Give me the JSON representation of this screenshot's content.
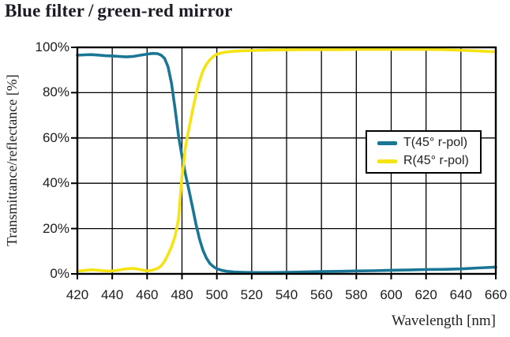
{
  "title": "Blue filter / green-red mirror",
  "colors": {
    "t_curve": "#1a7695",
    "r_curve": "#f5e314",
    "grid": "#000000",
    "frame": "#000000",
    "text": "#222222",
    "title_text": "#1b1b25",
    "background": "#ffffff"
  },
  "legend": {
    "entries": [
      {
        "label": "T(45° r-pol)",
        "swatch": "t-curve-swatch"
      },
      {
        "label": "R(45° r-pol)",
        "swatch": "r-curve-swatch"
      }
    ]
  },
  "chart_data": {
    "type": "line",
    "title": "Blue filter / green-red mirror",
    "xlabel": "Wavelength [nm]",
    "ylabel": "Transmittance/reflectance [%]",
    "xlim": [
      420,
      660
    ],
    "ylim": [
      0,
      100
    ],
    "x_ticks": [
      420,
      440,
      460,
      480,
      500,
      520,
      540,
      560,
      580,
      600,
      620,
      640,
      660
    ],
    "y_ticks": [
      0,
      20,
      40,
      60,
      80,
      100
    ],
    "y_tick_labels": [
      "0%",
      "20%",
      "40%",
      "60%",
      "80%",
      "100%"
    ],
    "grid": true,
    "legend_position": "right-center",
    "series": [
      {
        "name": "T(45° r-pol)",
        "color": "#1a7695",
        "points": [
          [
            420,
            96.5
          ],
          [
            424,
            96.7
          ],
          [
            428,
            96.8
          ],
          [
            432,
            96.6
          ],
          [
            436,
            96.3
          ],
          [
            440,
            96.2
          ],
          [
            444,
            96.0
          ],
          [
            448,
            95.8
          ],
          [
            452,
            96.0
          ],
          [
            456,
            96.5
          ],
          [
            460,
            97.0
          ],
          [
            463,
            97.3
          ],
          [
            466,
            97.2
          ],
          [
            468,
            96.6
          ],
          [
            470,
            95.2
          ],
          [
            472,
            91.5
          ],
          [
            474,
            84.0
          ],
          [
            476,
            73.0
          ],
          [
            478,
            61.0
          ],
          [
            480,
            52.0
          ],
          [
            482,
            44.0
          ],
          [
            484,
            37.0
          ],
          [
            486,
            29.5
          ],
          [
            488,
            22.0
          ],
          [
            490,
            15.5
          ],
          [
            492,
            10.5
          ],
          [
            494,
            7.0
          ],
          [
            496,
            4.6
          ],
          [
            498,
            3.2
          ],
          [
            500,
            2.3
          ],
          [
            503,
            1.5
          ],
          [
            506,
            1.1
          ],
          [
            510,
            0.8
          ],
          [
            515,
            0.7
          ],
          [
            520,
            0.6
          ],
          [
            530,
            0.6
          ],
          [
            540,
            0.7
          ],
          [
            550,
            0.85
          ],
          [
            560,
            1.0
          ],
          [
            570,
            1.1
          ],
          [
            580,
            1.3
          ],
          [
            590,
            1.4
          ],
          [
            600,
            1.6
          ],
          [
            610,
            1.7
          ],
          [
            620,
            1.9
          ],
          [
            630,
            2.0
          ],
          [
            640,
            2.2
          ],
          [
            650,
            2.6
          ],
          [
            660,
            3.0
          ]
        ]
      },
      {
        "name": "R(45° r-pol)",
        "color": "#f5e314",
        "points": [
          [
            420,
            1.2
          ],
          [
            424,
            1.5
          ],
          [
            428,
            1.8
          ],
          [
            432,
            1.6
          ],
          [
            436,
            1.3
          ],
          [
            440,
            1.3
          ],
          [
            444,
            1.7
          ],
          [
            448,
            2.2
          ],
          [
            452,
            2.4
          ],
          [
            456,
            1.9
          ],
          [
            460,
            1.3
          ],
          [
            463,
            1.6
          ],
          [
            466,
            2.4
          ],
          [
            468,
            3.5
          ],
          [
            470,
            5.5
          ],
          [
            472,
            8.5
          ],
          [
            474,
            12.0
          ],
          [
            476,
            16.5
          ],
          [
            478,
            24.0
          ],
          [
            480,
            43.0
          ],
          [
            481,
            49.0
          ],
          [
            482,
            56.0
          ],
          [
            484,
            64.0
          ],
          [
            486,
            72.0
          ],
          [
            488,
            79.0
          ],
          [
            490,
            85.0
          ],
          [
            492,
            89.5
          ],
          [
            494,
            92.5
          ],
          [
            496,
            94.5
          ],
          [
            498,
            96.0
          ],
          [
            500,
            97.0
          ],
          [
            503,
            97.6
          ],
          [
            506,
            98.0
          ],
          [
            510,
            98.3
          ],
          [
            515,
            98.5
          ],
          [
            520,
            98.6
          ],
          [
            530,
            98.8
          ],
          [
            540,
            98.9
          ],
          [
            550,
            99.0
          ],
          [
            560,
            99.0
          ],
          [
            570,
            99.0
          ],
          [
            580,
            99.1
          ],
          [
            590,
            99.1
          ],
          [
            600,
            99.1
          ],
          [
            610,
            99.1
          ],
          [
            620,
            99.1
          ],
          [
            630,
            99.0
          ],
          [
            640,
            98.7
          ],
          [
            650,
            98.4
          ],
          [
            660,
            98.0
          ]
        ]
      }
    ]
  }
}
